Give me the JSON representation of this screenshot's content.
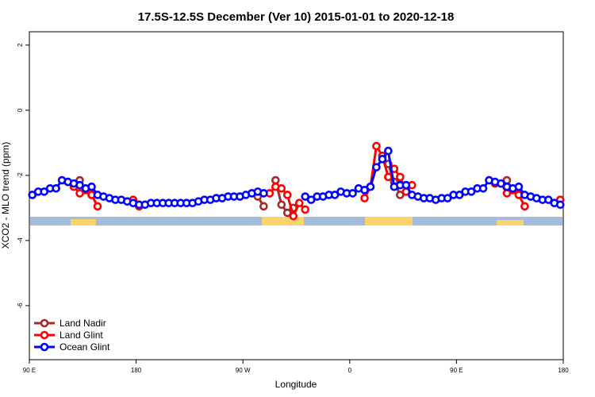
{
  "chart_data": {
    "type": "line",
    "title": "17.5S-12.5S December (Ver 10)   2015-01-01 to 2020-12-18",
    "x_label": "Longitude",
    "y_label": "XCO2 - MLO trend (ppm)",
    "x": [
      92.5,
      97.5,
      102.5,
      107.5,
      112.5,
      117.5,
      122.5,
      127.5,
      132.5,
      137.5,
      142.5,
      147.5,
      152.5,
      157.5,
      162.5,
      167.5,
      172.5,
      177.5,
      182.5,
      187.5,
      192.5,
      197.5,
      202.5,
      207.5,
      212.5,
      217.5,
      222.5,
      227.5,
      232.5,
      237.5,
      242.5,
      247.5,
      252.5,
      257.5,
      262.5,
      267.5,
      272.5,
      277.5,
      282.5,
      287.5,
      292.5,
      297.5,
      302.5,
      307.5,
      312.5,
      317.5,
      322.5,
      327.5,
      332.5,
      337.5,
      342.5,
      347.5,
      352.5,
      357.5,
      362.5,
      367.5,
      372.5,
      377.5,
      382.5,
      387.5,
      392.5,
      397.5,
      402.5,
      407.5,
      412.5,
      417.5,
      422.5,
      427.5,
      432.5,
      437.5,
      442.5,
      447.5,
      452.5,
      457.5,
      462.5,
      467.5,
      472.5,
      477.5,
      482.5,
      487.5,
      492.5,
      497.5,
      502.5,
      507.5,
      512.5,
      517.5,
      522.5,
      527.5,
      532.5,
      537.5
    ],
    "series": [
      {
        "name": "Land Nadir",
        "color": "#a52a2a",
        "values": [
          null,
          null,
          null,
          null,
          null,
          null,
          null,
          null,
          -2.15,
          -2.45,
          -2.6,
          null,
          null,
          null,
          null,
          null,
          null,
          null,
          null,
          null,
          null,
          null,
          null,
          null,
          null,
          null,
          null,
          null,
          null,
          null,
          null,
          null,
          null,
          null,
          null,
          null,
          null,
          null,
          -2.65,
          -2.95,
          null,
          -2.15,
          -2.9,
          -3.15,
          -3.0,
          null,
          null,
          null,
          null,
          null,
          null,
          null,
          null,
          null,
          null,
          null,
          null,
          null,
          null,
          -1.4,
          -1.65,
          -2.2,
          -2.6,
          null,
          null,
          null,
          null,
          null,
          null,
          null,
          null,
          null,
          null,
          null,
          null,
          null,
          null,
          null,
          null,
          null,
          -2.15,
          -2.45,
          -2.55,
          null,
          null,
          null,
          null,
          null,
          null,
          null
        ]
      },
      {
        "name": "Land Glint",
        "color": "#ff0000",
        "values": [
          null,
          null,
          null,
          null,
          null,
          null,
          -2.2,
          -2.35,
          -2.55,
          -2.45,
          -2.6,
          -2.95,
          null,
          null,
          null,
          null,
          null,
          -2.75,
          -2.95,
          null,
          null,
          null,
          null,
          null,
          null,
          null,
          null,
          null,
          null,
          null,
          null,
          null,
          null,
          null,
          null,
          null,
          null,
          null,
          null,
          null,
          -2.55,
          -2.35,
          -2.4,
          -2.6,
          -3.25,
          -2.85,
          -3.05,
          null,
          null,
          null,
          null,
          null,
          null,
          null,
          null,
          null,
          -2.7,
          -2.35,
          -1.1,
          -1.4,
          -2.05,
          -1.8,
          -2.05,
          -2.5,
          -2.3,
          null,
          null,
          null,
          null,
          null,
          null,
          null,
          null,
          null,
          null,
          null,
          null,
          null,
          -2.25,
          -2.25,
          -2.55,
          -2.45,
          -2.6,
          -2.95,
          null,
          null,
          null,
          null,
          null,
          -2.75
        ]
      },
      {
        "name": "Ocean Glint",
        "color": "#0000ff",
        "values": [
          -2.6,
          -2.5,
          -2.5,
          -2.4,
          -2.4,
          -2.15,
          -2.2,
          -2.25,
          -2.3,
          -2.4,
          -2.35,
          -2.6,
          -2.65,
          -2.7,
          -2.75,
          -2.75,
          -2.8,
          -2.85,
          -2.9,
          -2.9,
          -2.85,
          -2.85,
          -2.85,
          -2.85,
          -2.85,
          -2.85,
          -2.85,
          -2.85,
          -2.8,
          -2.75,
          -2.75,
          -2.7,
          -2.7,
          -2.65,
          -2.65,
          -2.65,
          -2.6,
          -2.55,
          -2.5,
          -2.55,
          null,
          null,
          null,
          null,
          null,
          null,
          -2.65,
          -2.75,
          -2.65,
          -2.65,
          -2.6,
          -2.6,
          -2.5,
          -2.55,
          -2.55,
          -2.4,
          -2.45,
          -2.35,
          -1.75,
          -1.5,
          -1.25,
          -2.35,
          -2.3,
          -2.3,
          -2.6,
          -2.65,
          -2.7,
          -2.7,
          -2.75,
          -2.7,
          -2.7,
          -2.6,
          -2.6,
          -2.5,
          -2.5,
          -2.4,
          -2.4,
          -2.15,
          -2.2,
          -2.25,
          -2.35,
          -2.4,
          -2.35,
          -2.6,
          -2.65,
          -2.7,
          -2.75,
          -2.75,
          -2.85,
          -2.9
        ]
      }
    ],
    "xlim": [
      90,
      540
    ],
    "xticks": [
      {
        "value": 90,
        "label": "90 E"
      },
      {
        "value": 180,
        "label": "180"
      },
      {
        "value": 270,
        "label": "90 W"
      },
      {
        "value": 360,
        "label": "0"
      },
      {
        "value": 450,
        "label": "90 E"
      },
      {
        "value": 540,
        "label": "180"
      }
    ],
    "ylim": [
      -7.66,
      2.41
    ],
    "yticks": [
      -6,
      -4,
      -2,
      0,
      2
    ],
    "legend": "bottomleft",
    "grid": false
  }
}
